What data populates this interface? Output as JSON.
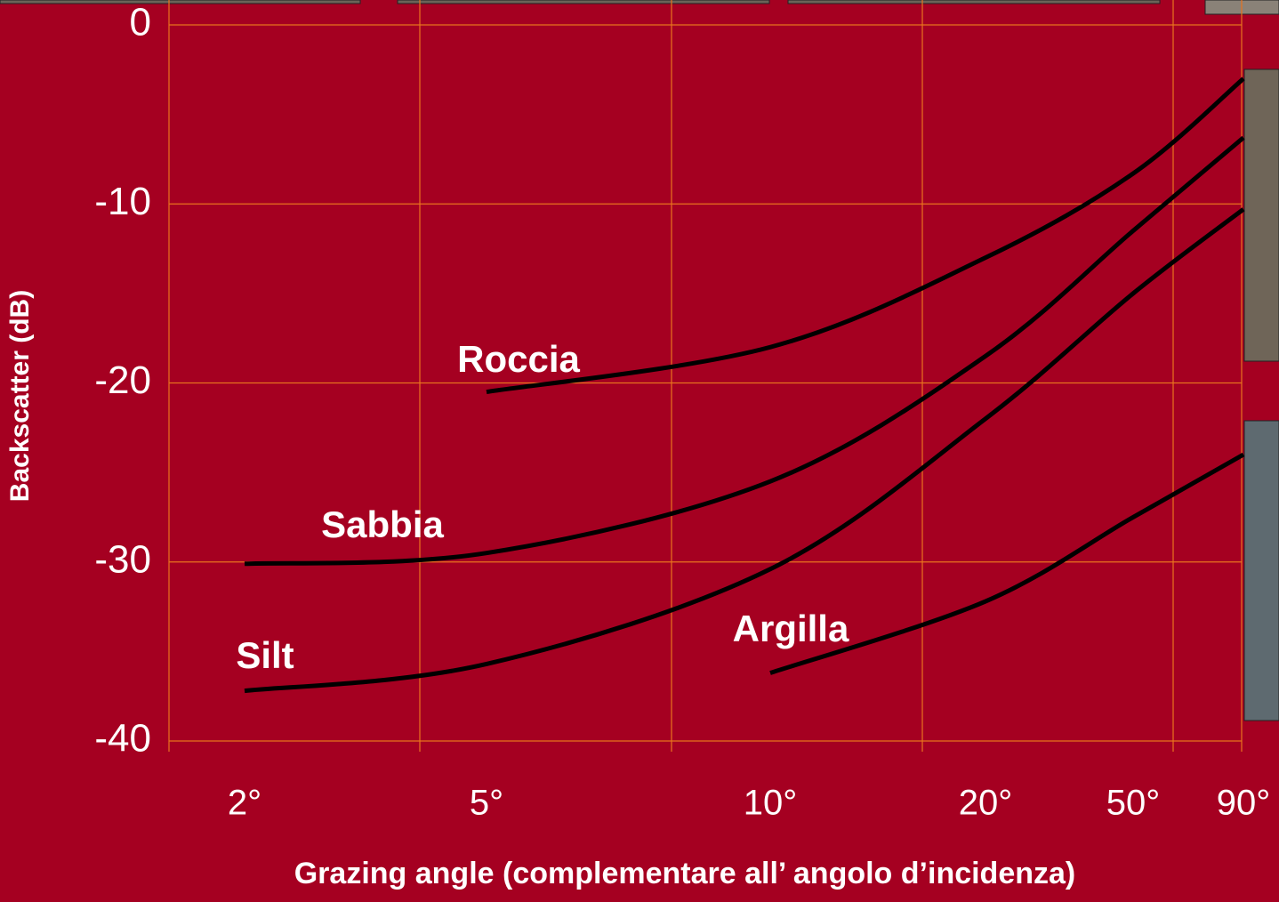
{
  "chart_data": {
    "type": "line",
    "y_label": "Backscatter (dB)",
    "x_label": "Grazing angle (complementare all’ angolo d’incidenza)",
    "categories": [
      "2°",
      "5°",
      "10°",
      "20°",
      "50°",
      "90°"
    ],
    "ylim": [
      -40,
      0
    ],
    "yticks": [
      0,
      -10,
      -20,
      -30,
      -40
    ],
    "grid": true,
    "series": [
      {
        "name": "Roccia",
        "color": "#000000",
        "values": [
          null,
          -20.5,
          -18,
          -13,
          -8.3,
          -3
        ]
      },
      {
        "name": "Sabbia",
        "color": "#000000",
        "values": [
          -30.1,
          -29.5,
          -25.5,
          -18.5,
          -11.5,
          -6.3
        ]
      },
      {
        "name": "Silt",
        "color": "#000000",
        "values": [
          -37.2,
          -35.7,
          -30.4,
          -22,
          -15,
          -10.3
        ]
      },
      {
        "name": "Argilla",
        "color": "#000000",
        "values": [
          null,
          null,
          -36.2,
          -32.2,
          -27.5,
          -24
        ]
      }
    ]
  }
}
